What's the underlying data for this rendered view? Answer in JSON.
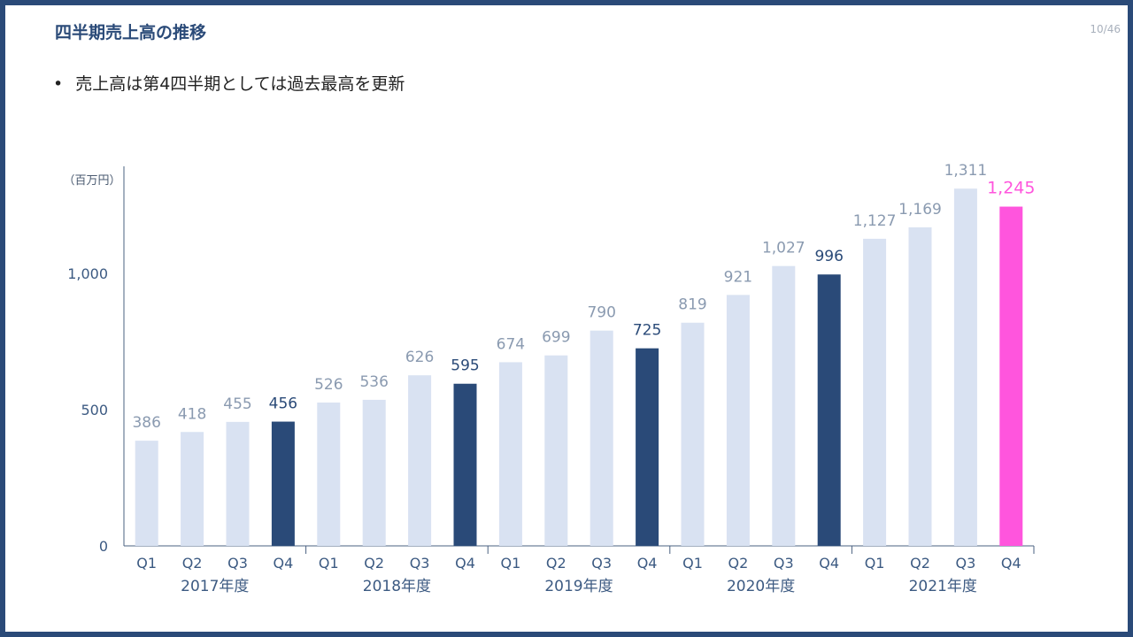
{
  "page": {
    "title": "四半期売上高の推移",
    "page_number": "10/46",
    "bullet": "売上高は第4四半期としては過去最高を更新"
  },
  "colors": {
    "frame": "#2a4a78",
    "bar_light": "#d9e2f2",
    "bar_dark": "#2a4a78",
    "bar_highlight": "#ff55dd",
    "label_light": "#8a9ab0",
    "label_dark": "#2a4a78",
    "axis_text": "#3c5a82"
  },
  "chart_data": {
    "type": "bar",
    "unit_label": "（百万円）",
    "ylim": [
      0,
      1400
    ],
    "yticks": [
      0,
      500,
      1000
    ],
    "ytick_labels": [
      "0",
      "500",
      "1,000"
    ],
    "years": [
      "2017年度",
      "2018年度",
      "2019年度",
      "2020年度",
      "2021年度"
    ],
    "quarters": [
      "Q1",
      "Q2",
      "Q3",
      "Q4"
    ],
    "values": [
      [
        386,
        418,
        455,
        456
      ],
      [
        526,
        536,
        626,
        595
      ],
      [
        674,
        699,
        790,
        725
      ],
      [
        819,
        921,
        1027,
        996
      ],
      [
        1127,
        1169,
        1311,
        1245
      ]
    ],
    "value_labels": [
      [
        "386",
        "418",
        "455",
        "456"
      ],
      [
        "526",
        "536",
        "626",
        "595"
      ],
      [
        "674",
        "699",
        "790",
        "725"
      ],
      [
        "819",
        "921",
        "1,027",
        "996"
      ],
      [
        "1,127",
        "1,169",
        "1,311",
        "1,245"
      ]
    ],
    "grid": false,
    "legend": "none"
  }
}
